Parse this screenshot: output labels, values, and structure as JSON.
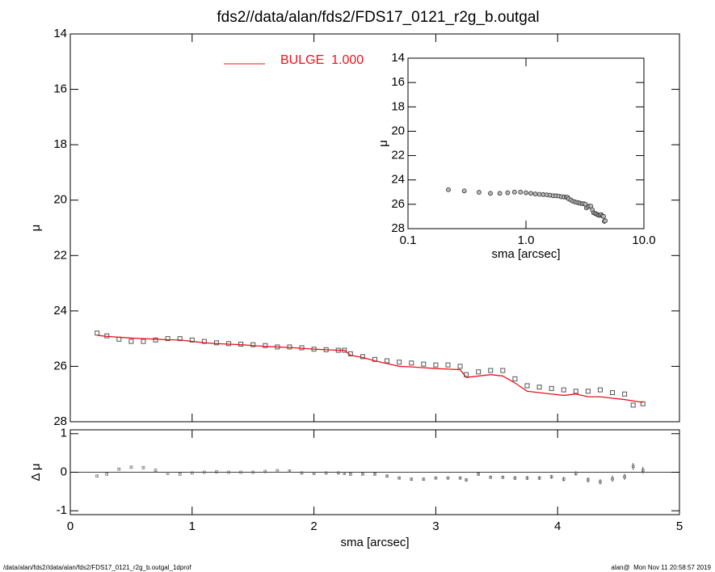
{
  "chart_data": [
    {
      "type": "scatter-line",
      "title": "fds2//data/alan/fds2/FDS17_0121_r2g_b.outgal",
      "y_label": "μ",
      "x": [
        0.22,
        0.3,
        0.4,
        0.5,
        0.6,
        0.7,
        0.8,
        0.9,
        1.0,
        1.1,
        1.2,
        1.3,
        1.4,
        1.5,
        1.6,
        1.7,
        1.8,
        1.9,
        2.0,
        2.1,
        2.2,
        2.25,
        2.3,
        2.4,
        2.5,
        2.6,
        2.7,
        2.8,
        2.9,
        3.0,
        3.1,
        3.2,
        3.25,
        3.35,
        3.45,
        3.55,
        3.65,
        3.75,
        3.85,
        3.95,
        4.05,
        4.15,
        4.25,
        4.35,
        4.45,
        4.55,
        4.62,
        4.7
      ],
      "series": [
        {
          "style": "points",
          "color": "#555555",
          "values": [
            24.8,
            24.9,
            25.02,
            25.1,
            25.1,
            25.05,
            25.0,
            25.0,
            25.05,
            25.1,
            25.15,
            25.18,
            25.2,
            25.22,
            25.25,
            25.3,
            25.3,
            25.33,
            25.38,
            25.4,
            25.42,
            25.42,
            25.55,
            25.65,
            25.75,
            25.8,
            25.85,
            25.88,
            25.92,
            25.95,
            25.95,
            26.0,
            26.3,
            26.2,
            26.15,
            26.15,
            26.45,
            26.7,
            26.75,
            26.8,
            26.85,
            26.9,
            26.9,
            26.85,
            26.95,
            27.0,
            27.4,
            27.35
          ]
        },
        {
          "style": "line",
          "name": "BULGE  1.000",
          "color": "#e8141e",
          "values": [
            24.88,
            24.92,
            24.95,
            24.98,
            25.0,
            25.02,
            25.04,
            25.05,
            25.1,
            25.15,
            25.18,
            25.2,
            25.22,
            25.25,
            25.28,
            25.3,
            25.32,
            25.35,
            25.38,
            25.4,
            25.42,
            25.42,
            25.6,
            25.68,
            25.8,
            25.9,
            26.0,
            26.02,
            26.05,
            26.08,
            26.1,
            26.12,
            26.4,
            26.35,
            26.3,
            26.35,
            26.6,
            26.9,
            26.95,
            27.0,
            27.05,
            27.0,
            27.1,
            27.1,
            27.15,
            27.2,
            27.25,
            27.3
          ]
        }
      ],
      "xlim": [
        0,
        5
      ],
      "xticks": [
        0,
        1,
        2,
        3,
        4,
        5
      ],
      "ylim": [
        28,
        14
      ],
      "yticks": [
        14,
        16,
        18,
        20,
        22,
        24,
        26,
        28
      ]
    },
    {
      "type": "errorbar",
      "x_label": "sma [arcsec]",
      "y_label": "Δ μ",
      "x": [
        0.22,
        0.3,
        0.4,
        0.5,
        0.6,
        0.7,
        0.8,
        0.9,
        1.0,
        1.1,
        1.2,
        1.3,
        1.4,
        1.5,
        1.6,
        1.7,
        1.8,
        1.9,
        2.0,
        2.1,
        2.2,
        2.25,
        2.3,
        2.4,
        2.5,
        2.6,
        2.7,
        2.8,
        2.9,
        3.0,
        3.1,
        3.2,
        3.25,
        3.35,
        3.45,
        3.55,
        3.65,
        3.75,
        3.85,
        3.95,
        4.05,
        4.15,
        4.25,
        4.35,
        4.45,
        4.55,
        4.62,
        4.7
      ],
      "values": [
        -0.1,
        -0.05,
        0.08,
        0.13,
        0.12,
        0.05,
        -0.03,
        -0.05,
        -0.02,
        0,
        0.01,
        0,
        0,
        0,
        0.02,
        0.04,
        0.03,
        -0.02,
        -0.03,
        -0.02,
        -0.02,
        -0.03,
        -0.05,
        -0.05,
        -0.05,
        -0.1,
        -0.15,
        -0.18,
        -0.18,
        -0.15,
        -0.15,
        -0.15,
        -0.2,
        -0.05,
        -0.13,
        -0.13,
        -0.15,
        -0.15,
        -0.15,
        -0.12,
        -0.18,
        -0.03,
        -0.2,
        -0.25,
        -0.17,
        -0.12,
        0.15,
        0.05
      ],
      "errors": [
        0.01,
        0.01,
        0.01,
        0.01,
        0.01,
        0.01,
        0.01,
        0.01,
        0.01,
        0.01,
        0.01,
        0.01,
        0.01,
        0.01,
        0.01,
        0.01,
        0.02,
        0.02,
        0.02,
        0.02,
        0.02,
        0.02,
        0.02,
        0.02,
        0.03,
        0.03,
        0.03,
        0.03,
        0.03,
        0.03,
        0.03,
        0.04,
        0.04,
        0.04,
        0.04,
        0.04,
        0.05,
        0.05,
        0.05,
        0.05,
        0.06,
        0.06,
        0.07,
        0.07,
        0.08,
        0.08,
        0.09,
        0.09
      ],
      "color": "#555555",
      "xlim": [
        0,
        5
      ],
      "xticks": [
        0,
        1,
        2,
        3,
        4,
        5
      ],
      "ylim": [
        -1.1,
        1.1
      ],
      "yticks": [
        -1,
        0,
        1
      ]
    },
    {
      "type": "scatter",
      "x_label": "sma [arcsec]",
      "y_label": "μ",
      "xlog": true,
      "x": [
        0.22,
        0.3,
        0.4,
        0.5,
        0.6,
        0.7,
        0.8,
        0.9,
        1.0,
        1.1,
        1.2,
        1.3,
        1.4,
        1.5,
        1.6,
        1.7,
        1.8,
        1.9,
        2.0,
        2.1,
        2.2,
        2.25,
        2.3,
        2.4,
        2.5,
        2.6,
        2.7,
        2.8,
        2.9,
        3.0,
        3.1,
        3.2,
        3.25,
        3.35,
        3.45,
        3.55,
        3.65,
        3.75,
        3.85,
        3.95,
        4.05,
        4.15,
        4.25,
        4.35,
        4.45,
        4.55,
        4.62,
        4.7
      ],
      "values": [
        24.8,
        24.9,
        25.02,
        25.1,
        25.1,
        25.05,
        25.0,
        25.0,
        25.05,
        25.1,
        25.15,
        25.18,
        25.2,
        25.22,
        25.25,
        25.3,
        25.3,
        25.33,
        25.38,
        25.4,
        25.42,
        25.42,
        25.55,
        25.65,
        25.75,
        25.8,
        25.85,
        25.88,
        25.92,
        25.95,
        25.95,
        26.0,
        26.3,
        26.2,
        26.15,
        26.15,
        26.45,
        26.7,
        26.75,
        26.8,
        26.85,
        26.9,
        26.9,
        26.85,
        26.95,
        27.0,
        27.4,
        27.35
      ],
      "color": "#777777",
      "xlim": [
        0.1,
        10
      ],
      "xticks": [
        {
          "value": 0.1,
          "label": "0.1"
        },
        {
          "value": 1,
          "label": "1.0"
        },
        {
          "value": 10,
          "label": "10.0"
        }
      ],
      "ylim": [
        28,
        14
      ],
      "yticks": [
        14,
        16,
        18,
        20,
        22,
        24,
        26,
        28
      ]
    }
  ],
  "footer": {
    "left": "/data/alan/fds2//data/alan/fds2/FDS17_0121_r2g_b.outgal_1dprof",
    "right": "alan@  Mon Nov 11 20:58:57 2019"
  }
}
